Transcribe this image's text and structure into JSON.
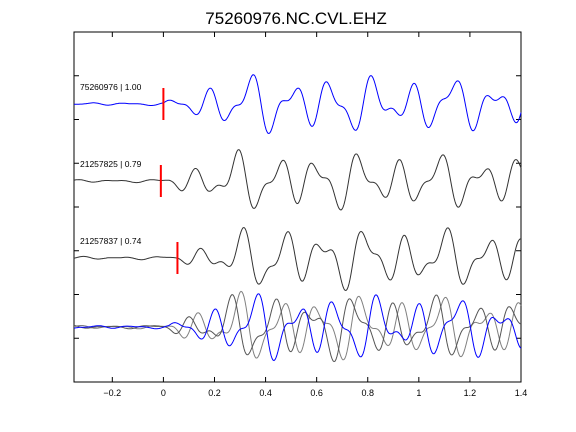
{
  "chart_data": {
    "type": "line",
    "title": "75260976.NC.CVL.EHZ",
    "xlabel": "",
    "ylabel": "",
    "xlim": [
      -0.35,
      1.4
    ],
    "x_ticks": [
      -0.2,
      0,
      0.2,
      0.4,
      0.6,
      0.8,
      1,
      1.2,
      1.4
    ],
    "x_tick_labels": [
      "−0.2",
      "0",
      "0.2",
      "0.4",
      "0.6",
      "0.8",
      "1",
      "1.2",
      "1.4"
    ],
    "y_tick_count": 7,
    "grid": false,
    "traces": [
      {
        "label": "75260976 | 1.00",
        "pick_time": 0.0,
        "color": "#0000ff"
      },
      {
        "label": "21257825 | 0.79",
        "pick_time": -0.01,
        "color": "#333333"
      },
      {
        "label": "21257837 | 0.74",
        "pick_time": 0.055,
        "color": "#333333"
      }
    ],
    "pick_color": "#ff0000",
    "overlay": {
      "colors": [
        "#808080",
        "#555555",
        "#0000ff"
      ]
    }
  }
}
